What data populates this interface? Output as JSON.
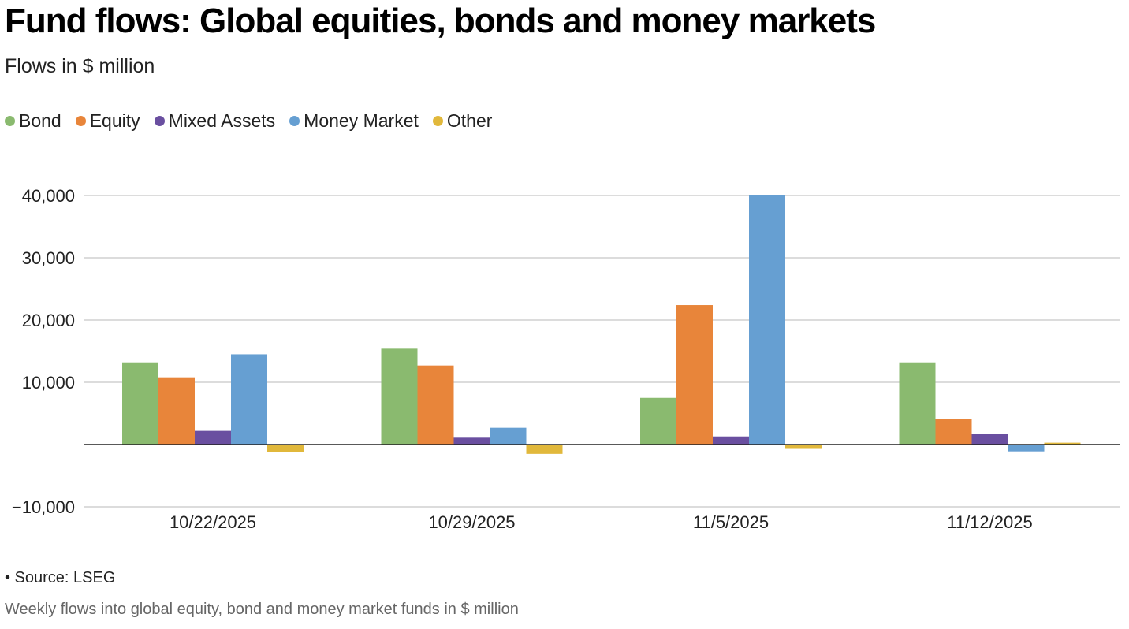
{
  "title": "Fund flows: Global equities, bonds and money markets",
  "subtitle": "Flows in $ million",
  "source": "• Source: LSEG",
  "footnote": "Weekly flows into global equity, bond and money market funds in $ million",
  "colors": {
    "Bond": "#8aba6f",
    "Equity": "#e8853a",
    "Mixed Assets": "#6a4fa0",
    "Money Market": "#669fd2",
    "Other": "#e1b83b"
  },
  "chart_data": {
    "type": "bar",
    "categories": [
      "10/22/2025",
      "10/29/2025",
      "11/5/2025",
      "11/12/2025"
    ],
    "series": [
      {
        "name": "Bond",
        "values": [
          13200,
          15400,
          7500,
          13200
        ]
      },
      {
        "name": "Equity",
        "values": [
          10800,
          12700,
          22400,
          4100
        ]
      },
      {
        "name": "Mixed Assets",
        "values": [
          2200,
          1100,
          1300,
          1700
        ]
      },
      {
        "name": "Money Market",
        "values": [
          14500,
          2700,
          40000,
          -1100
        ]
      },
      {
        "name": "Other",
        "values": [
          -1200,
          -1500,
          -700,
          300
        ]
      }
    ],
    "yticks": [
      "−10,000",
      "10,000",
      "20,000",
      "30,000",
      "40,000"
    ],
    "ytick_values": [
      -10000,
      10000,
      20000,
      30000,
      40000
    ],
    "ylim": [
      -10000,
      40000
    ],
    "legend_position": "top-left",
    "grid": true
  }
}
